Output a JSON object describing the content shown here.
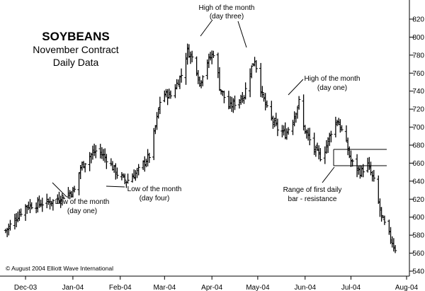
{
  "chart_data": {
    "type": "ohlc",
    "title": "SOYBEANS",
    "subtitle_lines": [
      "November Contract",
      "Daily Data"
    ],
    "copyright": "© August 2004 Elliott Wave International",
    "ylim": [
      540,
      830
    ],
    "y_ticks": [
      540,
      560,
      580,
      600,
      620,
      640,
      660,
      680,
      700,
      720,
      740,
      760,
      780,
      800,
      820
    ],
    "y_tick_labels": [
      "540",
      "560",
      "580",
      "600",
      "620",
      "640",
      "660",
      "680",
      "700",
      "720",
      "740",
      "760",
      "780",
      "800",
      "820"
    ],
    "x_ticks": [
      {
        "label": "Dec-03",
        "date": "2003-12-01"
      },
      {
        "label": "Jan-04",
        "date": "2004-01-01"
      },
      {
        "label": "Feb-04",
        "date": "2004-02-01"
      },
      {
        "label": "Mar-04",
        "date": "2004-03-01"
      },
      {
        "label": "Apr-04",
        "date": "2004-04-01"
      },
      {
        "label": "May-04",
        "date": "2004-05-01"
      },
      {
        "label": "Jun-04",
        "date": "2004-06-01"
      },
      {
        "label": "Jul-04",
        "date": "2004-07-01"
      },
      {
        "label": "Aug-04",
        "date": "2004-08-01"
      }
    ],
    "xlim": [
      "2003-11-18",
      "2004-08-01"
    ],
    "key_points": [
      {
        "date": "2003-11-18",
        "close": 585
      },
      {
        "date": "2003-12-01",
        "close": 612
      },
      {
        "date": "2003-12-20",
        "close": 618
      },
      {
        "date": "2004-01-02",
        "close": 630
      },
      {
        "date": "2004-01-06",
        "close": 655
      },
      {
        "date": "2004-01-12",
        "close": 668
      },
      {
        "date": "2004-01-17",
        "close": 675
      },
      {
        "date": "2004-01-23",
        "close": 665
      },
      {
        "date": "2004-01-30",
        "close": 648
      },
      {
        "date": "2004-02-05",
        "close": 640
      },
      {
        "date": "2004-02-12",
        "close": 650
      },
      {
        "date": "2004-02-20",
        "close": 668
      },
      {
        "date": "2004-02-24",
        "close": 700
      },
      {
        "date": "2004-02-28",
        "close": 738
      },
      {
        "date": "2004-03-05",
        "close": 735
      },
      {
        "date": "2004-03-12",
        "close": 758
      },
      {
        "date": "2004-03-16",
        "close": 785
      },
      {
        "date": "2004-03-21",
        "close": 772
      },
      {
        "date": "2004-03-24",
        "close": 748
      },
      {
        "date": "2004-03-28",
        "close": 770
      },
      {
        "date": "2004-04-03",
        "close": 785
      },
      {
        "date": "2004-04-06",
        "close": 745
      },
      {
        "date": "2004-04-12",
        "close": 722
      },
      {
        "date": "2004-04-17",
        "close": 728
      },
      {
        "date": "2004-04-22",
        "close": 735
      },
      {
        "date": "2004-04-26",
        "close": 762
      },
      {
        "date": "2004-04-29",
        "close": 775
      },
      {
        "date": "2004-05-04",
        "close": 735
      },
      {
        "date": "2004-05-08",
        "close": 715
      },
      {
        "date": "2004-05-14",
        "close": 698
      },
      {
        "date": "2004-05-19",
        "close": 692
      },
      {
        "date": "2004-05-24",
        "close": 708
      },
      {
        "date": "2004-05-28",
        "close": 728
      },
      {
        "date": "2004-05-31",
        "close": 700
      },
      {
        "date": "2004-06-06",
        "close": 678
      },
      {
        "date": "2004-06-12",
        "close": 665
      },
      {
        "date": "2004-06-18",
        "close": 695
      },
      {
        "date": "2004-06-22",
        "close": 708
      },
      {
        "date": "2004-06-27",
        "close": 688
      },
      {
        "date": "2004-07-01",
        "close": 662
      },
      {
        "date": "2004-07-07",
        "close": 650
      },
      {
        "date": "2004-07-12",
        "close": 658
      },
      {
        "date": "2004-07-16",
        "close": 640
      },
      {
        "date": "2004-07-21",
        "close": 600
      },
      {
        "date": "2004-07-26",
        "close": 580
      },
      {
        "date": "2004-07-30",
        "close": 565
      }
    ],
    "annotations": [
      {
        "lines": [
          "High of the month",
          "(day three)"
        ]
      },
      {
        "lines": [
          "High of the month",
          "(day one)"
        ]
      },
      {
        "lines": [
          "Low of the month",
          "(day one)"
        ]
      },
      {
        "lines": [
          "Low of the month",
          "(day four)"
        ]
      },
      {
        "lines": [
          "Range of first daily",
          "bar - resistance"
        ]
      }
    ],
    "resistance_range": [
      656,
      675
    ],
    "grid": false
  }
}
